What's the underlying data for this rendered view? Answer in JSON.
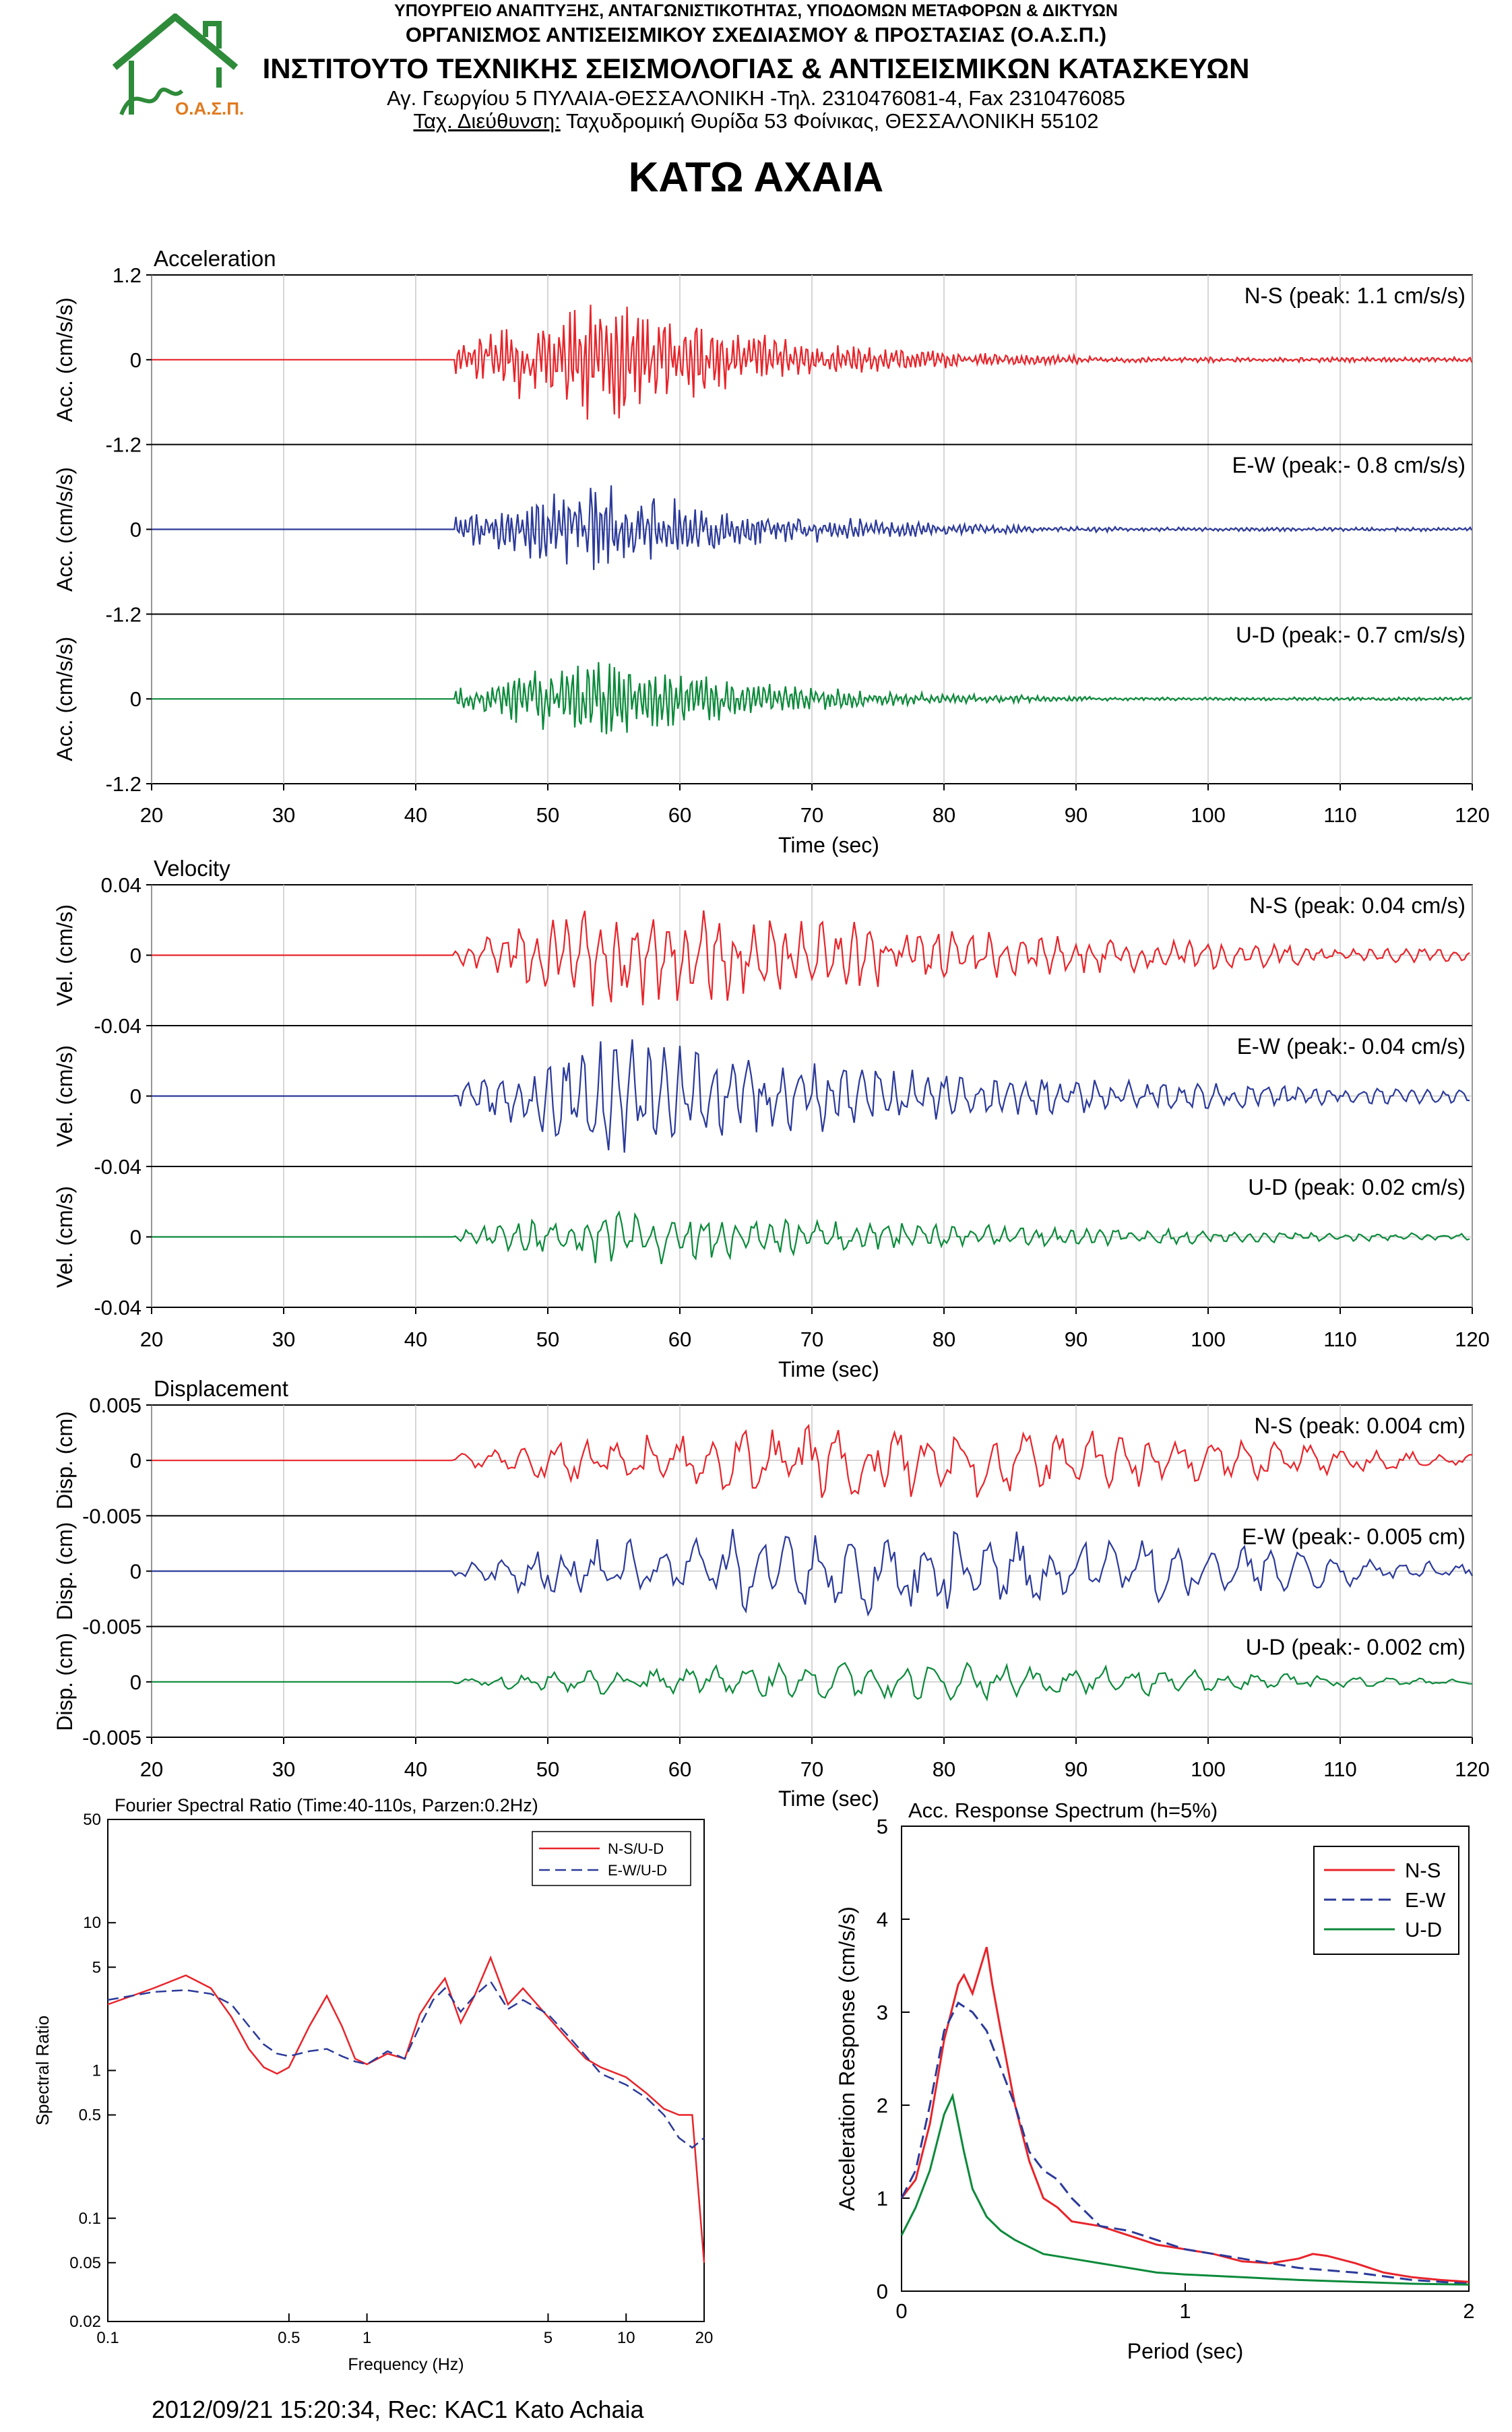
{
  "header": {
    "ministry": "ΥΠΟΥΡΓΕΙΟ ΑΝΑΠΤΥΞΗΣ, ΑΝΤΑΓΩΝΙΣΤΙΚΟΤΗΤΑΣ, ΥΠΟΔΟΜΩΝ ΜΕΤΑΦΟΡΩΝ & ΔΙΚΤΥΩΝ",
    "organization": "ΟΡΓΑΝΙΣΜΟΣ ΑΝΤΙΣΕΙΣΜΙΚΟΥ ΣΧΕΔΙΑΣΜΟΥ & ΠΡΟΣΤΑΣΙΑΣ (Ο.Α.Σ.Π.)",
    "institute": "ΙΝΣΤΙΤΟΥΤΟ ΤΕΧΝΙΚΗΣ ΣΕΙΣΜΟΛΟΓΙΑΣ & ΑΝΤΙΣΕΙΣΜΙΚΩΝ ΚΑΤΑΣΚΕΥΩΝ",
    "address": "Αγ. Γεωργίου 5 ΠΥΛΑΙΑ-ΘΕΣΣΑΛΟΝΙΚΗ -Τηλ. 2310476081-4, Fax 2310476085",
    "postal_label": "Ταχ. Διεύθυνση:",
    "postal_value": " Ταχυδρομική Θυρίδα 53 Φοίνικας, ΘΕΣΣΑΛΟΝΙΚΗ 55102",
    "logo_text": "Ο.Α.Σ.Π."
  },
  "station_title": "ΚΑΤΩ ΑΧΑΙΑ",
  "footer": "2012/09/21 15:20:34, Rec: KAC1 Kato Achaia",
  "colors": {
    "ns": "#e8242a",
    "ew": "#2b3a9a",
    "ud": "#0b8a3a",
    "logo": "#2e8b3a",
    "logo_text": "#e07a1f"
  },
  "chart_data": [
    {
      "id": "acceleration",
      "type": "line",
      "title": "Acceleration",
      "xlabel": "Time (sec)",
      "xlim": [
        20,
        120
      ],
      "xticks": [
        20,
        30,
        40,
        50,
        60,
        70,
        80,
        90,
        100,
        110,
        120
      ],
      "panels": [
        {
          "label": "N-S (peak: 1.1 cm/s/s)",
          "ylabel": "Acc. (cm/s/s)",
          "yticks": [
            "1.2",
            "0",
            "-1.2"
          ],
          "ylim": [
            -1.2,
            1.2
          ],
          "peak": 1.1,
          "onset": 43,
          "end": 110,
          "color_key": "ns"
        },
        {
          "label": "E-W (peak:- 0.8 cm/s/s)",
          "ylabel": "Acc. (cm/s/s)",
          "yticks": [
            "0",
            "-1.2"
          ],
          "ylim": [
            -1.2,
            1.2
          ],
          "peak": 0.8,
          "onset": 43,
          "end": 110,
          "color_key": "ew"
        },
        {
          "label": "U-D (peak:- 0.7 cm/s/s)",
          "ylabel": "Acc. (cm/s/s)",
          "yticks": [
            "0",
            "-1.2"
          ],
          "ylim": [
            -1.2,
            1.2
          ],
          "peak": 0.7,
          "onset": 43,
          "end": 110,
          "color_key": "ud"
        }
      ]
    },
    {
      "id": "velocity",
      "type": "line",
      "title": "Velocity",
      "xlabel": "Time (sec)",
      "xlim": [
        20,
        120
      ],
      "xticks": [
        20,
        30,
        40,
        50,
        60,
        70,
        80,
        90,
        100,
        110,
        120
      ],
      "panels": [
        {
          "label": "N-S (peak: 0.04 cm/s)",
          "ylabel": "Vel. (cm/s)",
          "yticks": [
            "0.04",
            "0",
            "-0.04"
          ],
          "ylim": [
            -0.04,
            0.04
          ],
          "peak": 0.04,
          "onset": 43,
          "end": 110,
          "color_key": "ns"
        },
        {
          "label": "E-W (peak:- 0.04 cm/s)",
          "ylabel": "Vel. (cm/s)",
          "yticks": [
            "0",
            "-0.04"
          ],
          "ylim": [
            -0.04,
            0.04
          ],
          "peak": 0.04,
          "onset": 43,
          "end": 110,
          "color_key": "ew"
        },
        {
          "label": "U-D (peak: 0.02 cm/s)",
          "ylabel": "Vel. (cm/s)",
          "yticks": [
            "0",
            "-0.04"
          ],
          "ylim": [
            -0.04,
            0.04
          ],
          "peak": 0.02,
          "onset": 43,
          "end": 110,
          "color_key": "ud"
        }
      ]
    },
    {
      "id": "displacement",
      "type": "line",
      "title": "Displacement",
      "xlabel": "Time (sec)",
      "xlim": [
        20,
        120
      ],
      "xticks": [
        20,
        30,
        40,
        50,
        60,
        70,
        80,
        90,
        100,
        110,
        120
      ],
      "panels": [
        {
          "label": "N-S (peak: 0.004 cm)",
          "ylabel": "Disp. (cm)",
          "yticks": [
            "0.005",
            "0",
            "-0.005"
          ],
          "ylim": [
            -0.005,
            0.005
          ],
          "peak": 0.004,
          "onset": 43,
          "end": 120,
          "color_key": "ns"
        },
        {
          "label": "E-W (peak:- 0.005 cm)",
          "ylabel": "Disp. (cm)",
          "yticks": [
            "0",
            "-0.005"
          ],
          "ylim": [
            -0.005,
            0.005
          ],
          "peak": 0.005,
          "onset": 43,
          "end": 120,
          "color_key": "ew"
        },
        {
          "label": "U-D (peak:- 0.002 cm)",
          "ylabel": "Disp. (cm)",
          "yticks": [
            "0",
            "-0.005"
          ],
          "ylim": [
            -0.005,
            0.005
          ],
          "peak": 0.002,
          "onset": 43,
          "end": 120,
          "color_key": "ud"
        }
      ]
    },
    {
      "id": "fourier",
      "type": "line",
      "title": "Fourier Spectral Ratio (Time:40-110s, Parzen:0.2Hz)",
      "xlabel": "Frequency (Hz)",
      "ylabel": "Spectral Ratio",
      "xscale": "log",
      "yscale": "log",
      "xlim": [
        0.1,
        20
      ],
      "ylim": [
        0.02,
        50
      ],
      "xticks": [
        0.1,
        0.5,
        1,
        5,
        10,
        20
      ],
      "xtick_labels": [
        "0.1",
        "0.5",
        "1",
        "5",
        "10",
        "20"
      ],
      "yticks": [
        50,
        10,
        5,
        1,
        0.5,
        0.1,
        0.05,
        0.02
      ],
      "ytick_labels": [
        "50",
        "10",
        "5",
        "1",
        "0.5",
        "0.1",
        "0.05",
        "0.02"
      ],
      "legend": "top-right",
      "series": [
        {
          "name": "N-S/U-D",
          "dash": false,
          "x": [
            0.1,
            0.15,
            0.2,
            0.25,
            0.3,
            0.35,
            0.4,
            0.45,
            0.5,
            0.6,
            0.7,
            0.8,
            0.9,
            1.0,
            1.2,
            1.4,
            1.6,
            1.8,
            2.0,
            2.3,
            2.6,
            3.0,
            3.5,
            4.0,
            5.0,
            6.0,
            7.0,
            8.0,
            10.0,
            12.0,
            14.0,
            16.0,
            18.0,
            20.0
          ],
          "y": [
            2.8,
            3.6,
            4.4,
            3.6,
            2.3,
            1.4,
            1.05,
            0.95,
            1.05,
            2.0,
            3.2,
            2.0,
            1.2,
            1.1,
            1.3,
            1.2,
            2.4,
            3.3,
            4.2,
            2.1,
            3.2,
            5.8,
            2.8,
            3.6,
            2.3,
            1.6,
            1.2,
            1.05,
            0.9,
            0.7,
            0.55,
            0.5,
            0.5,
            0.05
          ]
        },
        {
          "name": "E-W/U-D",
          "dash": true,
          "x": [
            0.1,
            0.15,
            0.2,
            0.25,
            0.3,
            0.35,
            0.4,
            0.45,
            0.5,
            0.6,
            0.7,
            0.8,
            0.9,
            1.0,
            1.2,
            1.4,
            1.6,
            1.8,
            2.0,
            2.3,
            2.6,
            3.0,
            3.5,
            4.0,
            5.0,
            6.0,
            7.0,
            8.0,
            10.0,
            12.0,
            14.0,
            16.0,
            18.0,
            20.0
          ],
          "y": [
            3.0,
            3.4,
            3.5,
            3.3,
            2.8,
            2.0,
            1.5,
            1.3,
            1.25,
            1.35,
            1.4,
            1.25,
            1.15,
            1.1,
            1.35,
            1.2,
            2.0,
            3.0,
            3.6,
            2.5,
            3.2,
            4.0,
            2.6,
            3.0,
            2.4,
            1.7,
            1.25,
            0.95,
            0.8,
            0.65,
            0.5,
            0.35,
            0.3,
            0.35
          ]
        }
      ]
    },
    {
      "id": "response",
      "type": "line",
      "title": "Acc. Response Spectrum (h=5%)",
      "xlabel": "Period (sec)",
      "ylabel": "Acceleration Response (cm/s/s)",
      "xlim": [
        0,
        2
      ],
      "ylim": [
        0,
        5
      ],
      "xticks": [
        0,
        1,
        2
      ],
      "yticks": [
        0,
        1,
        2,
        3,
        4,
        5
      ],
      "legend": "top-right",
      "series": [
        {
          "name": "N-S",
          "dash": false,
          "x": [
            0.0,
            0.05,
            0.1,
            0.15,
            0.2,
            0.22,
            0.25,
            0.28,
            0.3,
            0.32,
            0.35,
            0.4,
            0.45,
            0.5,
            0.55,
            0.6,
            0.7,
            0.8,
            0.9,
            1.0,
            1.1,
            1.2,
            1.3,
            1.4,
            1.45,
            1.5,
            1.6,
            1.7,
            1.8,
            1.9,
            2.0
          ],
          "y": [
            1.0,
            1.2,
            1.8,
            2.7,
            3.3,
            3.4,
            3.2,
            3.5,
            3.7,
            3.3,
            2.8,
            2.0,
            1.4,
            1.0,
            0.9,
            0.75,
            0.7,
            0.6,
            0.5,
            0.45,
            0.4,
            0.32,
            0.3,
            0.35,
            0.4,
            0.38,
            0.3,
            0.2,
            0.15,
            0.12,
            0.1
          ]
        },
        {
          "name": "E-W",
          "dash": true,
          "x": [
            0.0,
            0.05,
            0.1,
            0.15,
            0.2,
            0.25,
            0.3,
            0.35,
            0.4,
            0.45,
            0.5,
            0.55,
            0.6,
            0.65,
            0.7,
            0.8,
            0.9,
            1.0,
            1.1,
            1.2,
            1.4,
            1.6,
            1.8,
            2.0
          ],
          "y": [
            1.0,
            1.3,
            2.0,
            2.8,
            3.1,
            3.0,
            2.8,
            2.4,
            2.0,
            1.5,
            1.3,
            1.2,
            1.0,
            0.85,
            0.7,
            0.65,
            0.55,
            0.45,
            0.4,
            0.35,
            0.25,
            0.2,
            0.12,
            0.08
          ]
        },
        {
          "name": "U-D",
          "dash": false,
          "x": [
            0.0,
            0.05,
            0.1,
            0.15,
            0.18,
            0.2,
            0.22,
            0.25,
            0.3,
            0.35,
            0.4,
            0.5,
            0.6,
            0.7,
            0.8,
            0.9,
            1.0,
            1.2,
            1.4,
            1.6,
            1.8,
            2.0
          ],
          "y": [
            0.6,
            0.9,
            1.3,
            1.9,
            2.1,
            1.8,
            1.5,
            1.1,
            0.8,
            0.65,
            0.55,
            0.4,
            0.35,
            0.3,
            0.25,
            0.2,
            0.18,
            0.15,
            0.12,
            0.1,
            0.08,
            0.07
          ]
        }
      ]
    }
  ]
}
